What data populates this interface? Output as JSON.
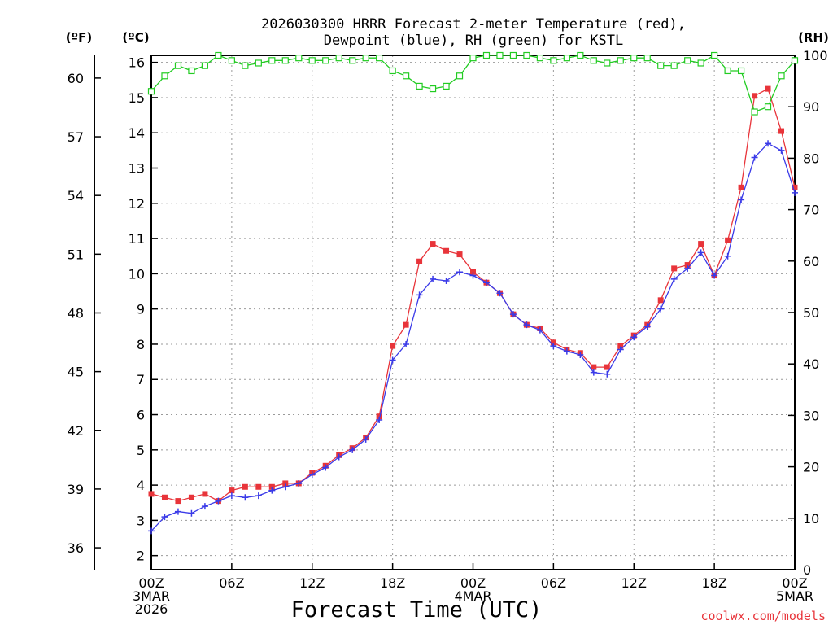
{
  "chart_data": {
    "type": "line",
    "title_line1": "2026030300 HRRR Forecast 2-meter Temperature (red),",
    "title_line2": "Dewpoint (blue), RH (green) for KSTL",
    "xlabel": "Forecast Time (UTC)",
    "credit": "coolwx.com/models",
    "unit_left_f": "(ºF)",
    "unit_left_c": "(ºC)",
    "unit_right_rh": "(RH)",
    "x_range_hours": [
      0,
      48
    ],
    "ylim_c": [
      1.6,
      16.2
    ],
    "ylim_rh": [
      0,
      100
    ],
    "x_ticks": [
      {
        "hour": 0,
        "lines": [
          "00Z",
          "3MAR",
          "2026"
        ]
      },
      {
        "hour": 6,
        "lines": [
          "06Z"
        ]
      },
      {
        "hour": 12,
        "lines": [
          "12Z"
        ]
      },
      {
        "hour": 18,
        "lines": [
          "18Z"
        ]
      },
      {
        "hour": 24,
        "lines": [
          "00Z",
          "4MAR"
        ]
      },
      {
        "hour": 30,
        "lines": [
          "06Z"
        ]
      },
      {
        "hour": 36,
        "lines": [
          "12Z"
        ]
      },
      {
        "hour": 42,
        "lines": [
          "18Z"
        ]
      },
      {
        "hour": 48,
        "lines": [
          "00Z",
          "5MAR"
        ]
      }
    ],
    "y_ticks_c": [
      2,
      3,
      4,
      5,
      6,
      7,
      8,
      9,
      10,
      11,
      12,
      13,
      14,
      15,
      16
    ],
    "y_ticks_f": [
      36,
      39,
      42,
      45,
      48,
      51,
      54,
      57,
      60
    ],
    "y_ticks_rh": [
      0,
      10,
      20,
      30,
      40,
      50,
      60,
      70,
      80,
      90,
      100
    ],
    "hours": [
      0,
      1,
      2,
      3,
      4,
      5,
      6,
      7,
      8,
      9,
      10,
      11,
      12,
      13,
      14,
      15,
      16,
      17,
      18,
      19,
      20,
      21,
      22,
      23,
      24,
      25,
      26,
      27,
      28,
      29,
      30,
      31,
      32,
      33,
      34,
      35,
      36,
      37,
      38,
      39,
      40,
      41,
      42,
      43,
      44,
      45,
      46,
      47,
      48
    ],
    "series": [
      {
        "name": "Temperature",
        "unit": "C",
        "color": "#e8343a",
        "values": [
          3.75,
          3.65,
          3.55,
          3.65,
          3.75,
          3.55,
          3.85,
          3.95,
          3.95,
          3.95,
          4.05,
          4.05,
          4.35,
          4.55,
          4.85,
          5.05,
          5.35,
          5.95,
          7.95,
          8.55,
          10.35,
          10.85,
          10.65,
          10.55,
          10.05,
          9.75,
          9.45,
          8.85,
          8.55,
          8.45,
          8.05,
          7.85,
          7.75,
          7.35,
          7.35,
          7.95,
          8.25,
          8.55,
          9.25,
          10.15,
          10.25,
          10.85,
          9.95,
          10.95,
          12.45,
          15.05,
          15.25,
          14.05,
          12.45
        ]
      },
      {
        "name": "Dewpoint",
        "unit": "C",
        "color": "#3a3ae8",
        "values": [
          2.7,
          3.1,
          3.25,
          3.2,
          3.4,
          3.55,
          3.7,
          3.65,
          3.7,
          3.85,
          3.95,
          4.05,
          4.3,
          4.5,
          4.8,
          5.0,
          5.3,
          5.85,
          7.55,
          8.0,
          9.4,
          9.85,
          9.8,
          10.05,
          9.95,
          9.75,
          9.45,
          8.85,
          8.55,
          8.4,
          7.95,
          7.8,
          7.7,
          7.2,
          7.15,
          7.85,
          8.2,
          8.5,
          9.0,
          9.85,
          10.15,
          10.6,
          9.95,
          10.5,
          12.1,
          13.3,
          13.7,
          13.5,
          12.3
        ]
      },
      {
        "name": "RH",
        "unit": "%",
        "color": "#22cc22",
        "values": [
          93,
          96,
          98,
          97,
          98,
          100,
          99,
          98,
          98.5,
          99,
          99,
          99.5,
          99,
          99,
          99.5,
          99,
          99.5,
          99.5,
          97,
          96,
          94,
          93.5,
          94,
          96,
          99.5,
          100,
          100,
          100,
          100,
          99.5,
          99,
          99.5,
          100,
          99,
          98.5,
          99,
          99.5,
          99.5,
          98,
          98,
          99,
          98.5,
          100,
          97,
          97,
          89,
          90,
          96,
          99
        ]
      }
    ]
  }
}
